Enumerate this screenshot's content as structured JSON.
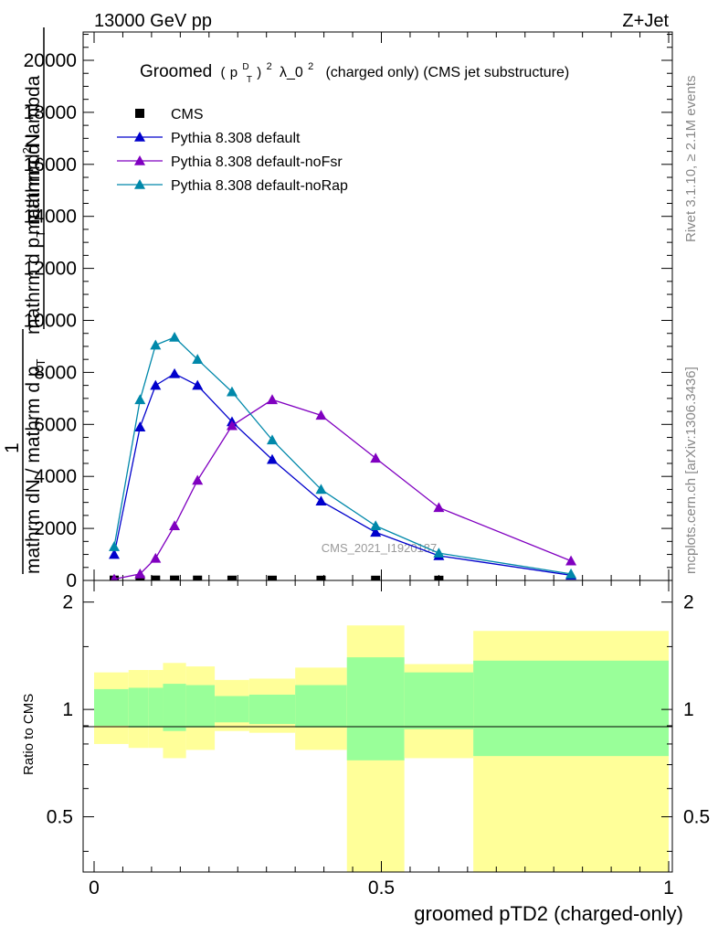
{
  "header": {
    "left": "13000 GeV pp",
    "right": "Z+Jet"
  },
  "side": {
    "rivet": "Rivet 3.1.10, ≥ 2.1M events",
    "mcplots": "mcplots.cern.ch [arXiv:1306.3436]"
  },
  "colors": {
    "cms": "#000000",
    "default": "#0000cc",
    "noFsr": "#8000c0",
    "noRap": "#0088aa",
    "band_outer": "#ffff99",
    "band_inner": "#99ff99"
  },
  "chart_data": [
    {
      "type": "line",
      "title_prefix": "Groomed",
      "title_p": "p",
      "title_sup_d": "D",
      "title_sub_t": "T",
      "title_sq": "2",
      "title_rest": "λ_0",
      "title_sq2": "2",
      "title_suffix": "(charged only) (CMS jet substructure)",
      "watermark": "CMS_2021_I1920187",
      "ylabel": {
        "line1": "mathrm d",
        "line1_sup": "2",
        "line1_rest": "N",
        "line2": "mathrm d p",
        "line2_sub": "T",
        "line2_rest": " mathrm d lambda",
        "line3": "1",
        "line4": "mathrm dN / mathrm d p",
        "line4_sub": "T"
      },
      "ylim": [
        0,
        20000
      ],
      "yticks": [
        0,
        2000,
        4000,
        6000,
        8000,
        10000,
        12000,
        14000,
        16000,
        18000,
        20000
      ],
      "ytick_labels": [
        "0",
        "2000",
        "4000",
        "6000",
        "8000",
        "10000",
        "12000",
        "14000",
        "16000",
        "18000",
        "20000"
      ],
      "legend_position": "top-left",
      "series": [
        {
          "name": "CMS",
          "key": "cms",
          "marker": "square",
          "x": [
            0.035,
            0.08,
            0.107,
            0.14,
            0.18,
            0.24,
            0.31,
            0.395,
            0.49,
            0.6
          ],
          "y": [
            10,
            12,
            12,
            12,
            10,
            8,
            7,
            6,
            6,
            5
          ]
        },
        {
          "name": "Pythia 8.308 default",
          "key": "default",
          "marker": "triangle",
          "x": [
            0.035,
            0.08,
            0.107,
            0.14,
            0.18,
            0.24,
            0.31,
            0.395,
            0.49,
            0.6,
            0.83
          ],
          "y": [
            1000,
            5900,
            7500,
            7950,
            7500,
            6100,
            4650,
            3050,
            1850,
            950,
            200
          ]
        },
        {
          "name": "Pythia 8.308 default-noFsr",
          "key": "noFsr",
          "marker": "triangle",
          "x": [
            0.035,
            0.08,
            0.107,
            0.14,
            0.18,
            0.24,
            0.31,
            0.395,
            0.49,
            0.6,
            0.83
          ],
          "y": [
            50,
            250,
            850,
            2100,
            3850,
            5950,
            6950,
            6350,
            4700,
            2800,
            750
          ]
        },
        {
          "name": "Pythia 8.308 default-noRap",
          "key": "noRap",
          "marker": "triangle",
          "x": [
            0.035,
            0.08,
            0.107,
            0.14,
            0.18,
            0.24,
            0.31,
            0.395,
            0.49,
            0.6,
            0.83
          ],
          "y": [
            1300,
            6950,
            9050,
            9350,
            8500,
            7250,
            5400,
            3500,
            2100,
            1050,
            250
          ]
        }
      ]
    },
    {
      "type": "area",
      "ylabel": "Ratio to CMS",
      "xlabel": "groomed pTD2 (charged-only)",
      "xlim": [
        0,
        1
      ],
      "ylim": [
        0.35,
        2.3
      ],
      "log_y": true,
      "xticks": [
        0,
        0.5,
        1
      ],
      "xtick_labels": [
        "0",
        "0.5",
        "1"
      ],
      "yticks": [
        0.5,
        1,
        2
      ],
      "ytick_labels": [
        "0.5",
        "1",
        "2"
      ],
      "bins": [
        {
          "x0": 0.0,
          "x1": 0.06,
          "outer": [
            0.8,
            1.27
          ],
          "inner": [
            0.9,
            1.14
          ]
        },
        {
          "x0": 0.06,
          "x1": 0.095,
          "outer": [
            0.78,
            1.29
          ],
          "inner": [
            0.89,
            1.15
          ]
        },
        {
          "x0": 0.095,
          "x1": 0.12,
          "outer": [
            0.78,
            1.29
          ],
          "inner": [
            0.89,
            1.15
          ]
        },
        {
          "x0": 0.12,
          "x1": 0.16,
          "outer": [
            0.73,
            1.35
          ],
          "inner": [
            0.87,
            1.18
          ]
        },
        {
          "x0": 0.16,
          "x1": 0.21,
          "outer": [
            0.77,
            1.32
          ],
          "inner": [
            0.89,
            1.17
          ]
        },
        {
          "x0": 0.21,
          "x1": 0.27,
          "outer": [
            0.87,
            1.21
          ],
          "inner": [
            0.92,
            1.09
          ]
        },
        {
          "x0": 0.27,
          "x1": 0.35,
          "outer": [
            0.86,
            1.22
          ],
          "inner": [
            0.91,
            1.1
          ]
        },
        {
          "x0": 0.35,
          "x1": 0.44,
          "outer": [
            0.77,
            1.31
          ],
          "inner": [
            0.89,
            1.17
          ]
        },
        {
          "x0": 0.44,
          "x1": 0.54,
          "outer": [
            0.35,
            1.72
          ],
          "inner": [
            0.72,
            1.4
          ]
        },
        {
          "x0": 0.54,
          "x1": 0.66,
          "outer": [
            0.73,
            1.34
          ],
          "inner": [
            0.88,
            1.27
          ]
        },
        {
          "x0": 0.66,
          "x1": 1.0,
          "outer": [
            0.35,
            1.66
          ],
          "inner": [
            0.74,
            1.37
          ]
        }
      ]
    }
  ]
}
